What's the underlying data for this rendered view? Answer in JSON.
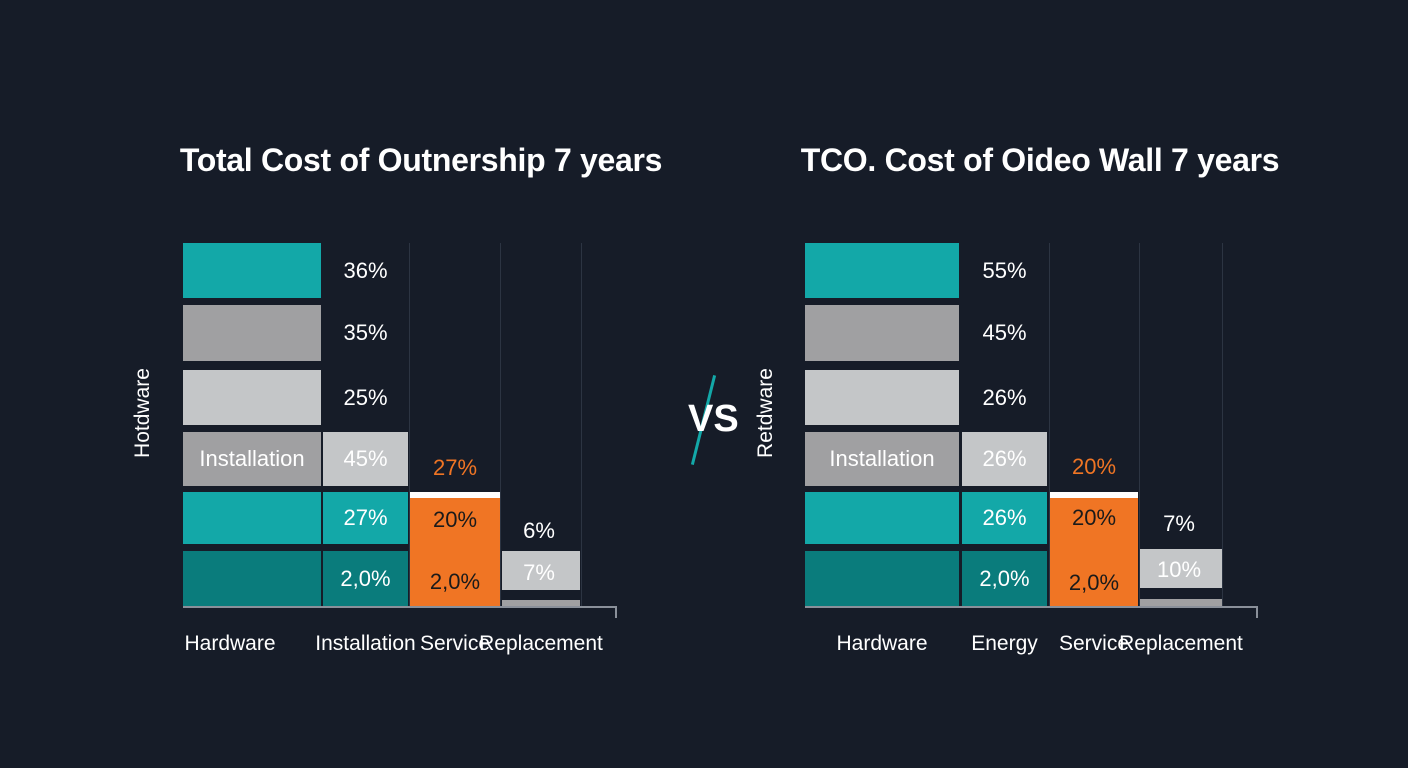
{
  "colors": {
    "background": "#161c28",
    "teal": "#13a8a8",
    "dark_teal": "#0a7c7c",
    "grey": "#a0a0a2",
    "light_grey": "#c4c6c8",
    "orange": "#f07524",
    "white": "#ffffff"
  },
  "vs_label": "VS",
  "chart_data": [
    {
      "type": "bar",
      "title": "Total Cost of Outnership 7 years",
      "ylabel": "Hotdware",
      "categories": [
        "Hardware",
        "Installation",
        "Service",
        "Replacement"
      ],
      "columns": [
        {
          "category": "Hardware",
          "segments": [
            {
              "color": "teal",
              "label": ""
            },
            {
              "color": "grey",
              "label": ""
            },
            {
              "color": "light_grey",
              "label": ""
            },
            {
              "color": "grey",
              "label": "Installation"
            },
            {
              "color": "teal",
              "label": ""
            },
            {
              "color": "dark_teal",
              "label": ""
            }
          ]
        },
        {
          "category": "Installation",
          "segments": [
            {
              "color": "none",
              "label": "36%"
            },
            {
              "color": "none",
              "label": "35%"
            },
            {
              "color": "none",
              "label": "25%"
            },
            {
              "color": "light_grey",
              "label": "45%"
            },
            {
              "color": "teal",
              "label": "27%"
            },
            {
              "color": "dark_teal",
              "label": "2,0%"
            }
          ]
        },
        {
          "category": "Service",
          "segments": [
            {
              "color": "none",
              "label": "27%",
              "label_color": "orange"
            },
            {
              "color": "orange",
              "label": "20%"
            },
            {
              "color": "orange",
              "label": "2,0%"
            }
          ]
        },
        {
          "category": "Replacement",
          "segments": [
            {
              "color": "none",
              "label": "6%"
            },
            {
              "color": "light_grey",
              "label": "7%"
            },
            {
              "color": "grey",
              "label": ""
            }
          ]
        }
      ]
    },
    {
      "type": "bar",
      "title": "TCO. Cost of Oideo Wall  7 years",
      "ylabel": "Retdware",
      "categories": [
        "Hardware",
        "Energy",
        "Service",
        "Replacement"
      ],
      "columns": [
        {
          "category": "Hardware",
          "segments": [
            {
              "color": "teal",
              "label": ""
            },
            {
              "color": "grey",
              "label": ""
            },
            {
              "color": "light_grey",
              "label": ""
            },
            {
              "color": "grey",
              "label": "Installation"
            },
            {
              "color": "teal",
              "label": ""
            },
            {
              "color": "dark_teal",
              "label": ""
            }
          ]
        },
        {
          "category": "Energy",
          "segments": [
            {
              "color": "none",
              "label": "55%"
            },
            {
              "color": "none",
              "label": "45%"
            },
            {
              "color": "none",
              "label": "26%"
            },
            {
              "color": "light_grey",
              "label": "26%"
            },
            {
              "color": "teal",
              "label": "26%"
            },
            {
              "color": "dark_teal",
              "label": "2,0%"
            }
          ]
        },
        {
          "category": "Service",
          "segments": [
            {
              "color": "none",
              "label": "20%",
              "label_color": "orange"
            },
            {
              "color": "orange",
              "label": "20%"
            },
            {
              "color": "orange",
              "label": "2,0%"
            }
          ]
        },
        {
          "category": "Replacement",
          "segments": [
            {
              "color": "none",
              "label": "7%"
            },
            {
              "color": "light_grey",
              "label": "10%"
            },
            {
              "color": "grey",
              "label": ""
            }
          ]
        }
      ]
    }
  ]
}
